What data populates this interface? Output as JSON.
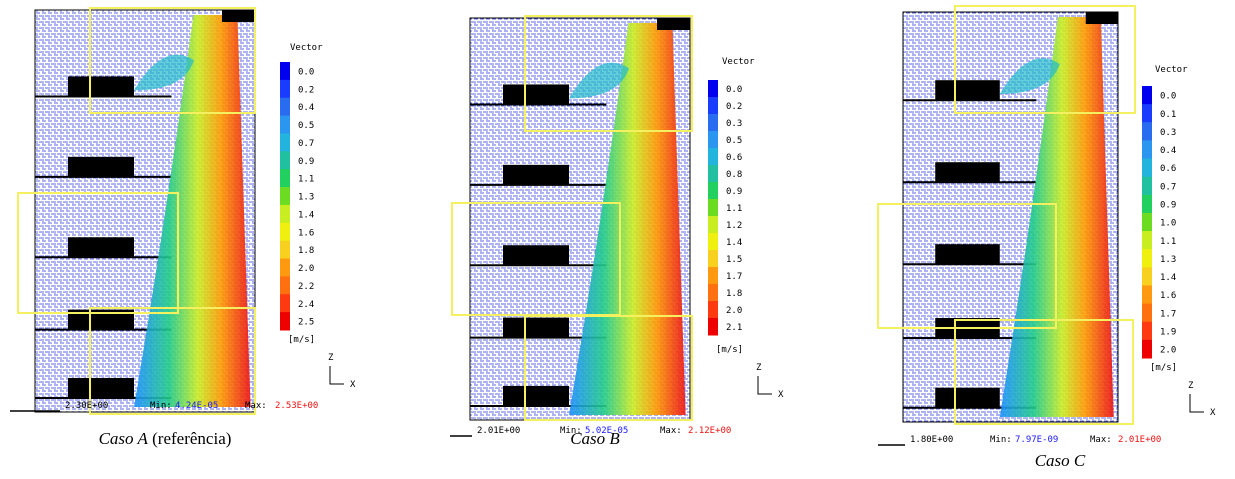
{
  "panels": [
    {
      "legend_title": "Vector",
      "legend": [
        "0.0",
        "0.2",
        "0.4",
        "0.5",
        "0.7",
        "0.9",
        "1.1",
        "1.3",
        "1.4",
        "1.6",
        "1.8",
        "2.0",
        "2.2",
        "2.4",
        "2.5"
      ],
      "unit": "[m/s]",
      "axis_z": "Z",
      "axis_x": "X",
      "scale": "2.30E+00",
      "min_label": "Min:",
      "min": "4.24E-05",
      "max_label": "Max:",
      "max": "2.53E+00",
      "caption": {
        "label": "Caso A",
        "note": "(referência)"
      }
    },
    {
      "legend_title": "Vector",
      "legend": [
        "0.0",
        "0.2",
        "0.3",
        "0.5",
        "0.6",
        "0.8",
        "0.9",
        "1.1",
        "1.2",
        "1.4",
        "1.5",
        "1.7",
        "1.8",
        "2.0",
        "2.1"
      ],
      "unit": "[m/s]",
      "axis_z": "Z",
      "axis_x": "X",
      "scale": "2.01E+00",
      "min_label": "Min:",
      "min": "5.02E-05",
      "max_label": "Max:",
      "max": "2.12E+00",
      "caption": {
        "label": "Caso B"
      }
    },
    {
      "legend_title": "Vector",
      "legend": [
        "0.0",
        "0.1",
        "0.3",
        "0.4",
        "0.6",
        "0.7",
        "0.9",
        "1.0",
        "1.1",
        "1.3",
        "1.4",
        "1.6",
        "1.7",
        "1.9",
        "2.0"
      ],
      "unit": "[m/s]",
      "axis_z": "Z",
      "axis_x": "X",
      "scale": "1.80E+00",
      "min_label": "Min:",
      "min": "7.97E-09",
      "max_label": "Max:",
      "max": "2.01E+00",
      "caption": {
        "label": "Caso C"
      }
    }
  ]
}
